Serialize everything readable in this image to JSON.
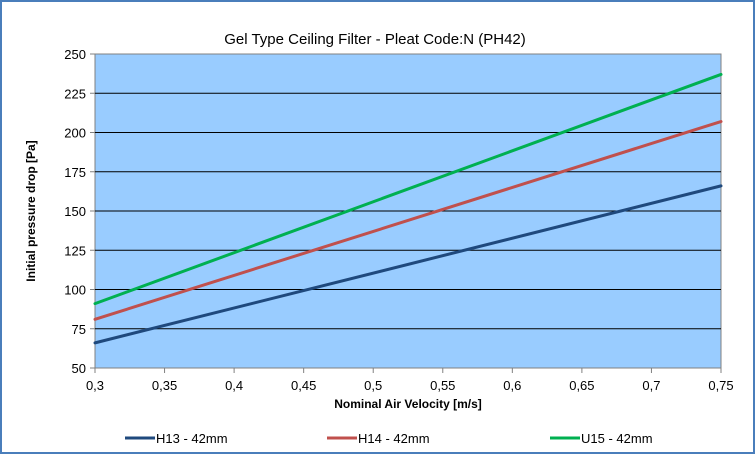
{
  "chart_data": {
    "type": "line",
    "title": "Gel Type Ceiling Filter - Pleat Code:N (PH42)",
    "xlabel": "Nominal Air Velocity [m/s]",
    "ylabel": "Initial pressure drop [Pa]",
    "xlim": [
      0.3,
      0.75
    ],
    "ylim": [
      50,
      250
    ],
    "x_ticks": [
      "0,3",
      "0,35",
      "0,4",
      "0,45",
      "0,5",
      "0,55",
      "0,6",
      "0,65",
      "0,7",
      "0,75"
    ],
    "y_ticks": [
      "50",
      "75",
      "100",
      "125",
      "150",
      "175",
      "200",
      "225",
      "250"
    ],
    "grid": "horizontal",
    "legend_position": "bottom",
    "plot_background": "#99ccff",
    "series": [
      {
        "name": "H13 - 42mm",
        "color": "#1f497d",
        "x": [
          0.3,
          0.75
        ],
        "y": [
          66,
          166
        ]
      },
      {
        "name": "H14 - 42mm",
        "color": "#c0504d",
        "x": [
          0.3,
          0.75
        ],
        "y": [
          81,
          207
        ]
      },
      {
        "name": "U15 - 42mm",
        "color": "#00b050",
        "x": [
          0.3,
          0.75
        ],
        "y": [
          91,
          237
        ]
      }
    ]
  }
}
